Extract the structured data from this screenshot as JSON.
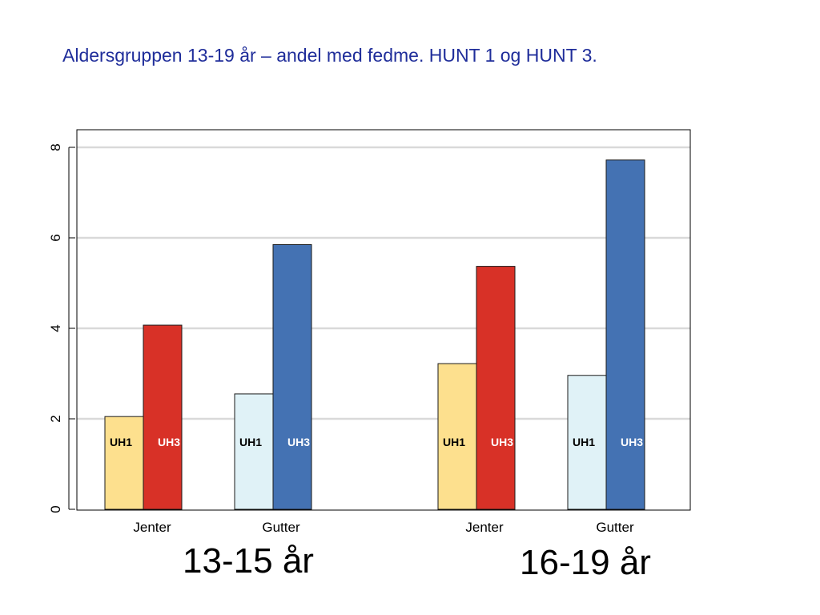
{
  "title": "Aldersgruppen 13-19 år – andel med fedme. HUNT 1 og HUNT 3.",
  "chart_data": {
    "type": "bar",
    "ylim": [
      0,
      8.4
    ],
    "yticks": [
      0,
      2,
      4,
      6,
      8
    ],
    "grid": true,
    "groups": [
      {
        "label": "13-15 år",
        "categories": [
          {
            "label": "Jenter",
            "bars": [
              {
                "series": "UH1",
                "value": 2.05,
                "color": "#fde08e",
                "label_color": "#000000"
              },
              {
                "series": "UH3",
                "value": 4.07,
                "color": "#d83127",
                "label_color": "#ffffff"
              }
            ]
          },
          {
            "label": "Gutter",
            "bars": [
              {
                "series": "UH1",
                "value": 2.55,
                "color": "#e0f2f7",
                "label_color": "#000000"
              },
              {
                "series": "UH3",
                "value": 5.85,
                "color": "#4472b3",
                "label_color": "#ffffff"
              }
            ]
          }
        ]
      },
      {
        "label": "16-19 år",
        "categories": [
          {
            "label": "Jenter",
            "bars": [
              {
                "series": "UH1",
                "value": 3.22,
                "color": "#fde08e",
                "label_color": "#000000"
              },
              {
                "series": "UH3",
                "value": 5.37,
                "color": "#d83127",
                "label_color": "#ffffff"
              }
            ]
          },
          {
            "label": "Gutter",
            "bars": [
              {
                "series": "UH1",
                "value": 2.96,
                "color": "#e0f2f7",
                "label_color": "#000000"
              },
              {
                "series": "UH3",
                "value": 7.72,
                "color": "#4472b3",
                "label_color": "#ffffff"
              }
            ]
          }
        ]
      }
    ]
  }
}
